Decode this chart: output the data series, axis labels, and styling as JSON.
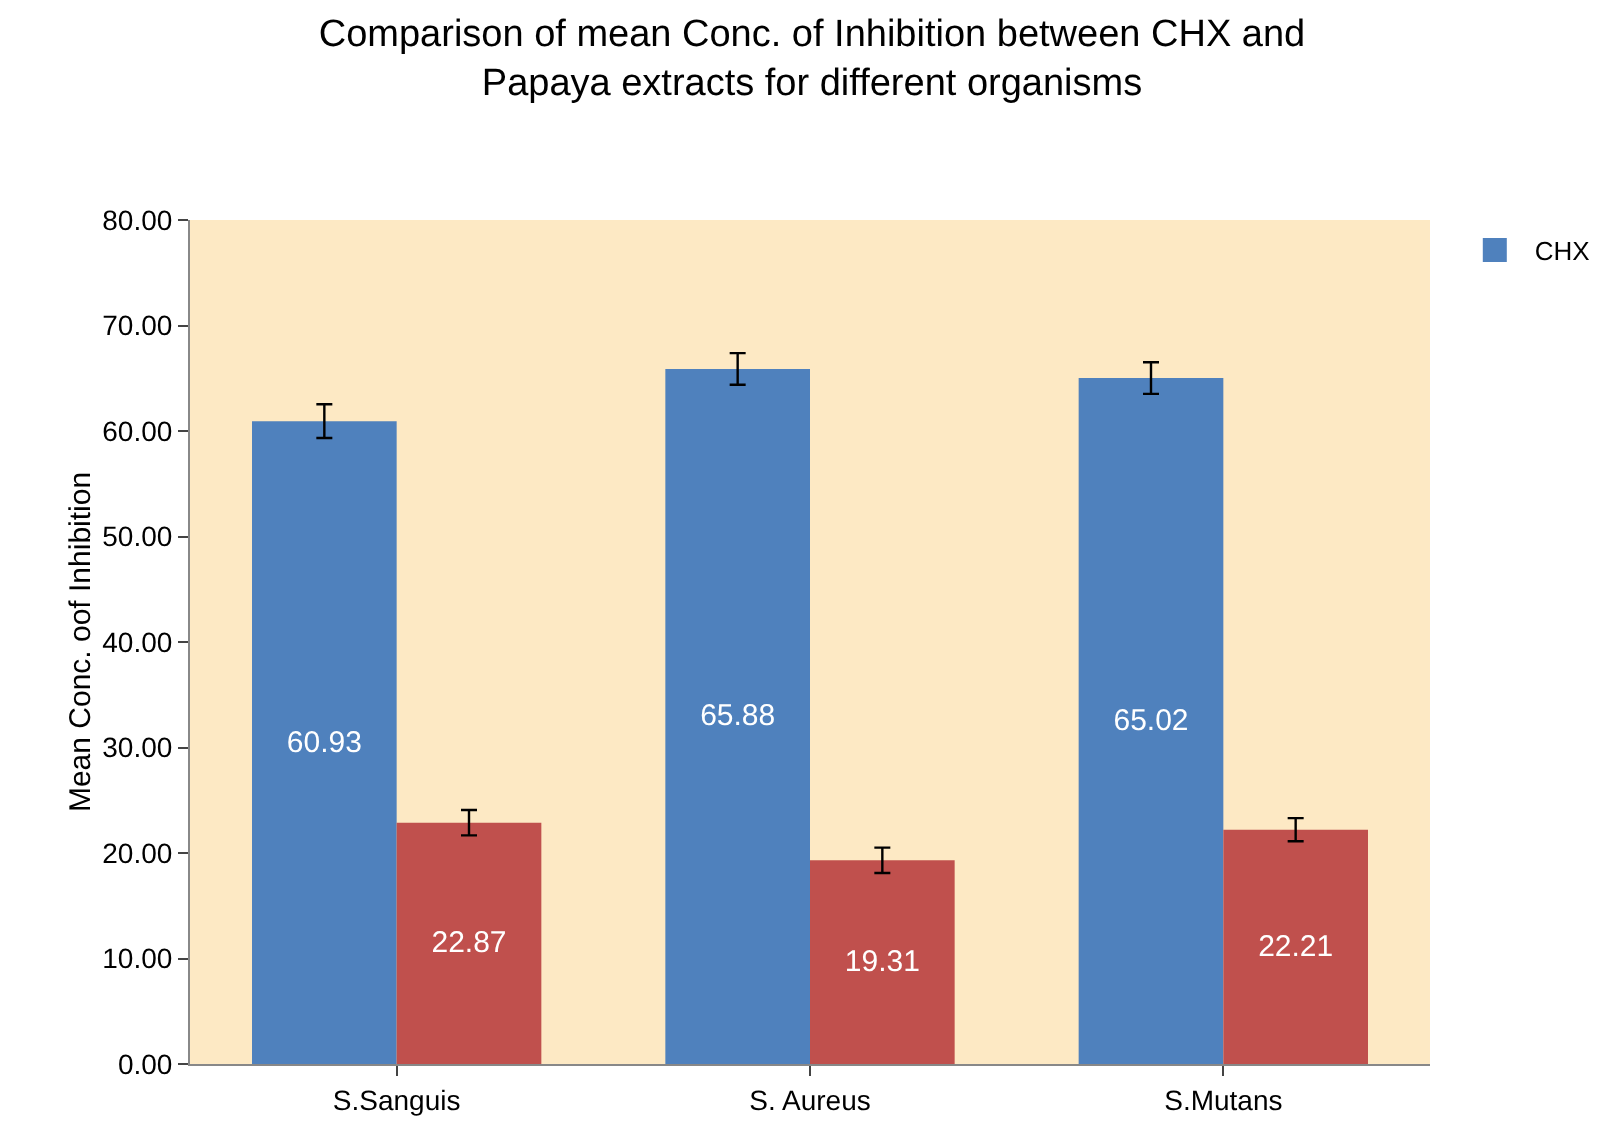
{
  "chart_data": {
    "type": "bar",
    "title": "Comparison of mean Conc. of Inhibition between CHX and Papaya extracts for different organisms",
    "ylabel": "Mean Conc. oof Inhibition",
    "categories": [
      "S.Sanguis",
      "S. Aureus",
      "S.Mutans"
    ],
    "series": [
      {
        "name": "CHX",
        "color": "#4f81bd",
        "values": [
          60.93,
          65.88,
          65.02
        ],
        "errors": [
          1.6,
          1.5,
          1.5
        ]
      },
      {
        "color": "#c0504d",
        "values": [
          22.87,
          19.31,
          22.21
        ],
        "errors": [
          1.2,
          1.2,
          1.1
        ]
      }
    ],
    "ylim": [
      0,
      80
    ],
    "yticks": [
      {
        "value": 0,
        "label": "0.00"
      },
      {
        "value": 10,
        "label": "10.00"
      },
      {
        "value": 20,
        "label": "20.00"
      },
      {
        "value": 30,
        "label": "30.00"
      },
      {
        "value": 40,
        "label": "40.00"
      },
      {
        "value": 50,
        "label": "50.00"
      },
      {
        "value": 60,
        "label": "60.00"
      },
      {
        "value": 70,
        "label": "70.00"
      },
      {
        "value": 80,
        "label": "80.00"
      }
    ],
    "data_labels": true,
    "grid": false,
    "legend": "top right"
  }
}
